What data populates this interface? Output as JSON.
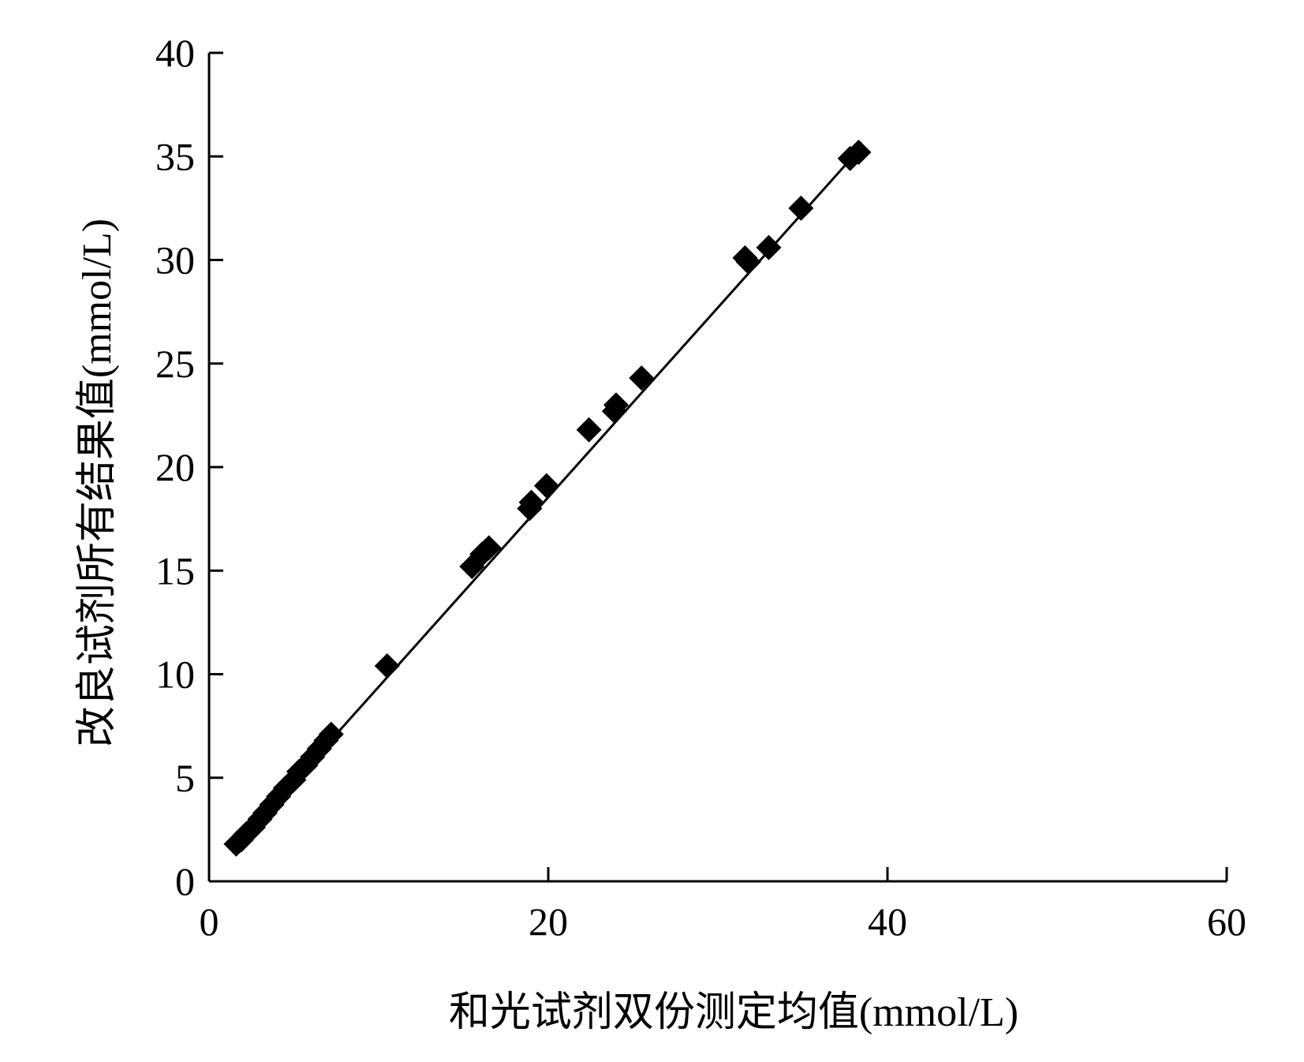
{
  "chart_data": {
    "type": "scatter",
    "title": "",
    "xlabel": "和光试剂双份测定均值(mmol/L)",
    "ylabel": "改良试剂所有结果值(mmol/L)",
    "xlim": [
      0,
      60
    ],
    "ylim": [
      0,
      40
    ],
    "x_ticks": [
      "0",
      "20",
      "40",
      "60"
    ],
    "y_ticks": [
      "0",
      "5",
      "10",
      "15",
      "20",
      "25",
      "30",
      "35",
      "40"
    ],
    "grid": false,
    "legend": "none",
    "marker": "diamond",
    "marker_color": "#000000",
    "series": [
      {
        "points": [
          [
            1.6,
            1.8
          ],
          [
            1.9,
            2.0
          ],
          [
            2.2,
            2.3
          ],
          [
            2.6,
            2.6
          ],
          [
            3.0,
            3.0
          ],
          [
            3.3,
            3.3
          ],
          [
            3.7,
            3.7
          ],
          [
            4.1,
            4.1
          ],
          [
            4.5,
            4.5
          ],
          [
            5.0,
            4.9
          ],
          [
            5.3,
            5.3
          ],
          [
            5.7,
            5.6
          ],
          [
            6.1,
            6.0
          ],
          [
            6.5,
            6.4
          ],
          [
            6.9,
            6.8
          ],
          [
            7.2,
            7.1
          ],
          [
            10.5,
            10.4
          ],
          [
            15.5,
            15.2
          ],
          [
            16.1,
            15.8
          ],
          [
            16.5,
            16.1
          ],
          [
            18.9,
            18.0
          ],
          [
            19.0,
            18.3
          ],
          [
            19.9,
            19.1
          ],
          [
            22.4,
            21.8
          ],
          [
            23.9,
            22.7
          ],
          [
            24.0,
            23.0
          ],
          [
            25.5,
            24.3
          ],
          [
            31.6,
            30.1
          ],
          [
            31.8,
            29.9
          ],
          [
            33.0,
            30.6
          ],
          [
            34.9,
            32.5
          ],
          [
            37.8,
            34.9
          ],
          [
            38.3,
            35.2
          ]
        ]
      }
    ],
    "trendline": {
      "from": [
        1.6,
        1.7
      ],
      "to": [
        38.3,
        35.3
      ]
    }
  }
}
